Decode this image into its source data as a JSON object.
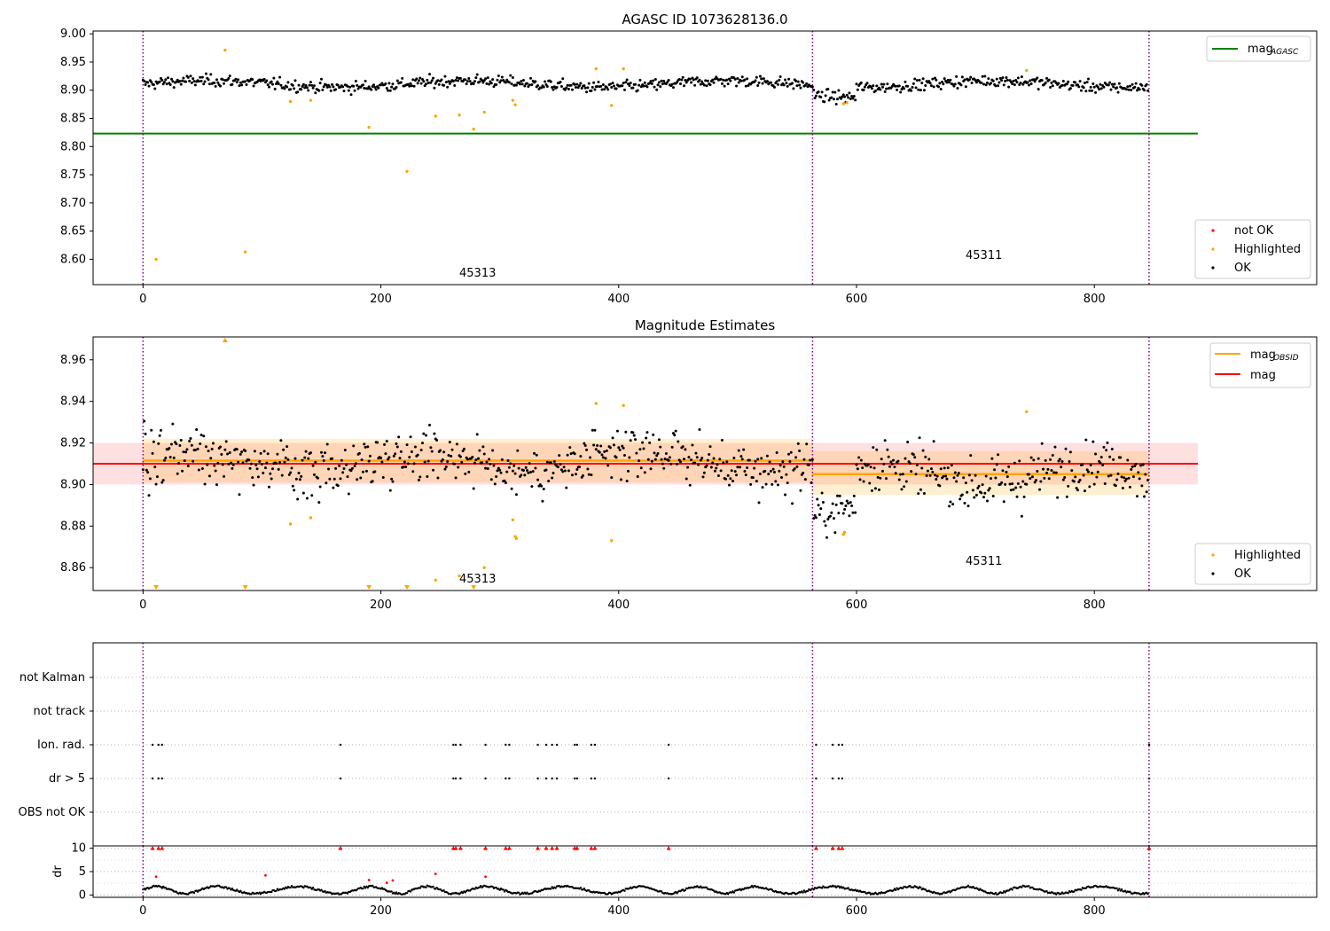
{
  "chart_data": [
    {
      "type": "scatter",
      "title": "AGASC ID 1073628136.0",
      "xlim": [
        -42,
        987
      ],
      "ylim": [
        8.555,
        9.005
      ],
      "x_ticks": [
        0,
        200,
        400,
        600,
        800
      ],
      "y_ticks": [
        8.6,
        8.65,
        8.7,
        8.75,
        8.8,
        8.85,
        8.9,
        8.95,
        9.0
      ],
      "y_tick_labels": [
        "8.60",
        "8.65",
        "8.70",
        "8.75",
        "8.80",
        "8.85",
        "8.90",
        "8.95",
        "9.00"
      ],
      "obsid_boundaries": [
        0,
        563,
        846
      ],
      "obsid_labels": [
        {
          "text": "45313",
          "x": 280,
          "y": 8.58
        },
        {
          "text": "45311",
          "x": 702,
          "y": 8.61
        }
      ],
      "reference_lines": [
        {
          "name": "mag",
          "subscript": "AGASC",
          "y": 8.823,
          "x_range": [
            -42,
            887
          ],
          "color": "#008000"
        }
      ],
      "ok_points": {
        "count": 846,
        "mean": 8.911,
        "spread": 0.008
      },
      "highlighted_points": [
        {
          "x": 11,
          "y": 8.6
        },
        {
          "x": 69,
          "y": 8.971
        },
        {
          "x": 86,
          "y": 8.613
        },
        {
          "x": 124,
          "y": 8.88
        },
        {
          "x": 141,
          "y": 8.882
        },
        {
          "x": 190,
          "y": 8.834
        },
        {
          "x": 222,
          "y": 8.756
        },
        {
          "x": 246,
          "y": 8.854
        },
        {
          "x": 266,
          "y": 8.856
        },
        {
          "x": 278,
          "y": 8.831
        },
        {
          "x": 287,
          "y": 8.861
        },
        {
          "x": 311,
          "y": 8.882
        },
        {
          "x": 313,
          "y": 8.874
        },
        {
          "x": 381,
          "y": 8.938
        },
        {
          "x": 394,
          "y": 8.873
        },
        {
          "x": 404,
          "y": 8.938
        },
        {
          "x": 589,
          "y": 8.876
        },
        {
          "x": 592,
          "y": 8.878
        },
        {
          "x": 743,
          "y": 8.935
        }
      ],
      "legend_lines": [
        {
          "name": "mag",
          "subscript": "AGASC",
          "color": "#008000"
        }
      ],
      "legend_points": [
        {
          "name": "not OK",
          "color": "#ff0000"
        },
        {
          "name": "Highlighted",
          "color": "#ffa500"
        },
        {
          "name": "OK",
          "color": "#000000"
        }
      ]
    },
    {
      "type": "scatter",
      "title": "Magnitude Estimates",
      "xlim": [
        -42,
        987
      ],
      "ylim": [
        8.849,
        8.971
      ],
      "x_ticks": [
        0,
        200,
        400,
        600,
        800
      ],
      "y_ticks": [
        8.86,
        8.88,
        8.9,
        8.92,
        8.94,
        8.96
      ],
      "y_tick_labels": [
        "8.86",
        "8.88",
        "8.90",
        "8.92",
        "8.94",
        "8.96"
      ],
      "obsid_boundaries": [
        0,
        563,
        846
      ],
      "obsid_labels": [
        {
          "text": "45313",
          "x": 280,
          "y": 8.856
        },
        {
          "text": "45311",
          "x": 702,
          "y": 8.862
        }
      ],
      "mag": {
        "name": "mag",
        "y": 8.91,
        "band": [
          8.9,
          8.92
        ],
        "x_range": [
          -42,
          887
        ],
        "color": "#ff0000"
      },
      "mag_obsid": [
        {
          "obsid": "45313",
          "x_range": [
            0,
            563
          ],
          "y": 8.9115,
          "band": [
            8.901,
            8.922
          ]
        },
        {
          "obsid": "45311",
          "x_range": [
            563,
            846
          ],
          "y": 8.905,
          "band": [
            8.895,
            8.916
          ]
        }
      ],
      "ok_points": {
        "count": 846,
        "mean_45313": 8.911,
        "mean_45311": 8.905,
        "spread": 0.009
      },
      "highlighted_points": [
        {
          "x": 124,
          "y": 8.881
        },
        {
          "x": 141,
          "y": 8.884
        },
        {
          "x": 246,
          "y": 8.854
        },
        {
          "x": 266,
          "y": 8.856
        },
        {
          "x": 287,
          "y": 8.86
        },
        {
          "x": 311,
          "y": 8.883
        },
        {
          "x": 313,
          "y": 8.875
        },
        {
          "x": 314,
          "y": 8.874
        },
        {
          "x": 381,
          "y": 8.939
        },
        {
          "x": 394,
          "y": 8.873
        },
        {
          "x": 404,
          "y": 8.938
        },
        {
          "x": 589,
          "y": 8.876
        },
        {
          "x": 590,
          "y": 8.877
        },
        {
          "x": 743,
          "y": 8.935
        }
      ],
      "off_scale_high": [
        {
          "x": 69
        }
      ],
      "off_scale_low": [
        {
          "x": 11
        },
        {
          "x": 86
        },
        {
          "x": 190
        },
        {
          "x": 222
        },
        {
          "x": 278
        }
      ],
      "legend_lines": [
        {
          "name": "mag",
          "subscript": "OBSID",
          "color": "#ffa500"
        },
        {
          "name": "mag",
          "subscript": "",
          "color": "#ff0000"
        }
      ],
      "legend_points": [
        {
          "name": "Highlighted",
          "color": "#ffa500"
        },
        {
          "name": "OK",
          "color": "#000000"
        }
      ]
    },
    {
      "type": "scatter",
      "xlim": [
        -42,
        987
      ],
      "x_ticks": [
        0,
        200,
        400,
        600,
        800
      ],
      "obsid_boundaries": [
        0,
        563,
        846
      ],
      "flag_rows": [
        "not Kalman",
        "not track",
        "Ion. rad.",
        "dr > 5",
        "OBS not OK"
      ],
      "flag_x": [
        8,
        13,
        16,
        166,
        261,
        263,
        267,
        288,
        305,
        308,
        332,
        339,
        344,
        348,
        363,
        365,
        377,
        380,
        442,
        566,
        580,
        585,
        588,
        846
      ]
    },
    {
      "type": "scatter",
      "ylabel": "dr",
      "xlim": [
        -42,
        987
      ],
      "ylim": [
        -0.5,
        10.5
      ],
      "x_ticks": [
        0,
        200,
        400,
        600,
        800
      ],
      "y_ticks": [
        0,
        5,
        10
      ],
      "y_tick_labels": [
        "0",
        "5",
        "10"
      ],
      "obsid_boundaries": [
        0,
        563,
        846
      ],
      "dr_typical": {
        "min": 0.2,
        "max": 1.9
      },
      "dr_outliers": [
        {
          "x": 11,
          "y": 3.9
        },
        {
          "x": 103,
          "y": 4.2
        },
        {
          "x": 190,
          "y": 3.2
        },
        {
          "x": 205,
          "y": 2.6
        },
        {
          "x": 210,
          "y": 3.1
        },
        {
          "x": 246,
          "y": 4.5
        },
        {
          "x": 288,
          "y": 3.9
        }
      ],
      "dr_clipped_x": [
        8,
        13,
        16,
        166,
        261,
        263,
        267,
        288,
        305,
        308,
        332,
        339,
        344,
        348,
        363,
        365,
        377,
        380,
        442,
        566,
        580,
        585,
        588,
        846
      ]
    }
  ]
}
